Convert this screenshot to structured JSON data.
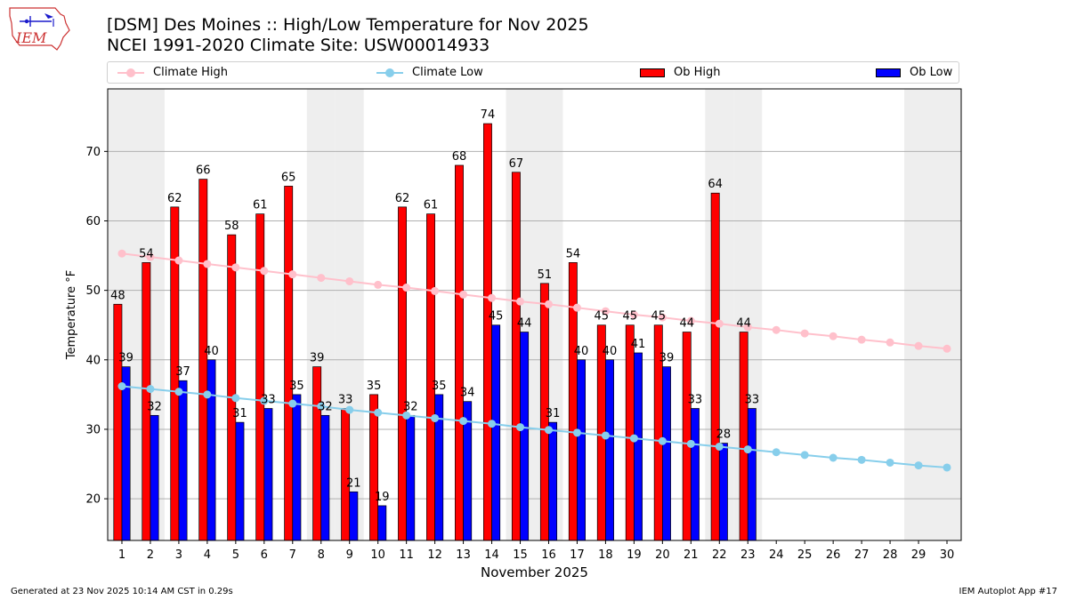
{
  "header": {
    "title_line1": "[DSM] Des Moines :: High/Low Temperature for Nov 2025",
    "title_line2": "NCEI 1991-2020 Climate Site: USW00014933"
  },
  "logo": {
    "text": "IEM"
  },
  "legend": {
    "climate_high": "Climate High",
    "climate_low": "Climate Low",
    "ob_high": "Ob High",
    "ob_low": "Ob Low"
  },
  "footer": {
    "generated": "Generated at 23 Nov 2025 10:14 AM CST in 0.29s",
    "app": "IEM Autoplot App #17"
  },
  "colors": {
    "ob_high": "#ff0000",
    "ob_low": "#0000ff",
    "climate_high": "#ffc0cb",
    "climate_low": "#87ceeb",
    "weekend_shade": "#eeeeee",
    "grid": "#b0b0b0"
  },
  "chart_data": {
    "type": "bar",
    "title": "[DSM] Des Moines :: High/Low Temperature for Nov 2025",
    "xlabel": "November 2025",
    "ylabel": "Temperature °F",
    "xlim": [
      0.5,
      30.5
    ],
    "ylim": [
      14,
      79
    ],
    "yticks": [
      20,
      30,
      40,
      50,
      60,
      70
    ],
    "grid": true,
    "legend_position": "top",
    "days": [
      1,
      2,
      3,
      4,
      5,
      6,
      7,
      8,
      9,
      10,
      11,
      12,
      13,
      14,
      15,
      16,
      17,
      18,
      19,
      20,
      21,
      22,
      23,
      24,
      25,
      26,
      27,
      28,
      29,
      30
    ],
    "weekend_days": [
      1,
      2,
      8,
      9,
      15,
      16,
      22,
      23,
      29,
      30
    ],
    "series": [
      {
        "name": "Ob High",
        "kind": "bar",
        "values": [
          48,
          54,
          62,
          66,
          58,
          61,
          65,
          39,
          33,
          35,
          62,
          61,
          68,
          74,
          67,
          51,
          54,
          45,
          45,
          45,
          44,
          64,
          44
        ]
      },
      {
        "name": "Ob Low",
        "kind": "bar",
        "values": [
          39,
          32,
          37,
          40,
          31,
          33,
          35,
          32,
          21,
          19,
          32,
          35,
          34,
          45,
          44,
          31,
          40,
          40,
          41,
          39,
          33,
          28,
          33
        ]
      },
      {
        "name": "Climate High",
        "kind": "line",
        "values": [
          55.3,
          54.8,
          54.3,
          53.8,
          53.3,
          52.8,
          52.3,
          51.8,
          51.3,
          50.8,
          50.4,
          49.9,
          49.4,
          48.9,
          48.4,
          48.0,
          47.5,
          47.0,
          46.5,
          46.1,
          45.6,
          45.2,
          44.7,
          44.3,
          43.8,
          43.4,
          42.9,
          42.5,
          42.0,
          41.6
        ]
      },
      {
        "name": "Climate Low",
        "kind": "line",
        "values": [
          36.2,
          35.8,
          35.4,
          35.0,
          34.5,
          34.1,
          33.7,
          33.3,
          32.8,
          32.4,
          32.0,
          31.6,
          31.2,
          30.8,
          30.3,
          29.9,
          29.5,
          29.1,
          28.7,
          28.3,
          27.9,
          27.5,
          27.1,
          26.7,
          26.3,
          25.9,
          25.6,
          25.2,
          24.8,
          24.5
        ]
      }
    ]
  }
}
